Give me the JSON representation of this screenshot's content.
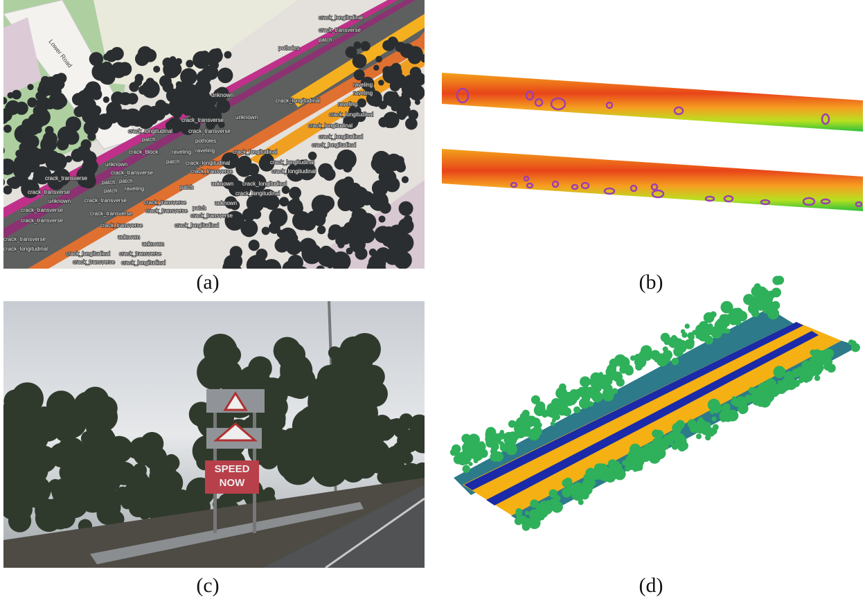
{
  "figure": {
    "panels": [
      {
        "caption": "(a)",
        "street": "Lower Road",
        "labels": [
          "crack_longitudinal",
          "crack_transverse",
          "patch",
          "potholes",
          "unknown",
          "crack_longitudinal",
          "raveling",
          "raveling",
          "raveling",
          "unknown",
          "crack_transverse",
          "crack_longitudinal",
          "crack_longitudinal",
          "crack_longitudinal",
          "crack_transverse",
          "crack_longitudinal",
          "crack_longitudinal",
          "patch",
          "potholes",
          "crack_block",
          "raveling",
          "raveling",
          "crack_longitudinal",
          "patch",
          "crack_longitudinal",
          "crack_longitudinal",
          "unknown",
          "crack_transverse",
          "crack_transverse",
          "crack_longitudinal",
          "crack_transverse",
          "patch",
          "patch",
          "raveling",
          "patch",
          "unknown",
          "crack_longitudinal",
          "crack_transverse",
          "patch",
          "crack_longitudinal",
          "unknown",
          "crack_transverse",
          "crack_transverse",
          "crack_transverse",
          "patch",
          "unknown",
          "crack_transverse",
          "crack_transverse",
          "crack_transverse",
          "crack_transverse",
          "crack_transverse",
          "crack_longitudinal",
          "unknown",
          "crack_transverse",
          "unknown",
          "crack_longitudinal",
          "crack_longitudinal",
          "crack_transverse",
          "crack_transverse",
          "crack_longitudinal"
        ]
      },
      {
        "caption": "(b)"
      },
      {
        "caption": "(c)",
        "sign_text": [
          "SPEED",
          "NOW"
        ]
      },
      {
        "caption": "(d)"
      }
    ]
  }
}
